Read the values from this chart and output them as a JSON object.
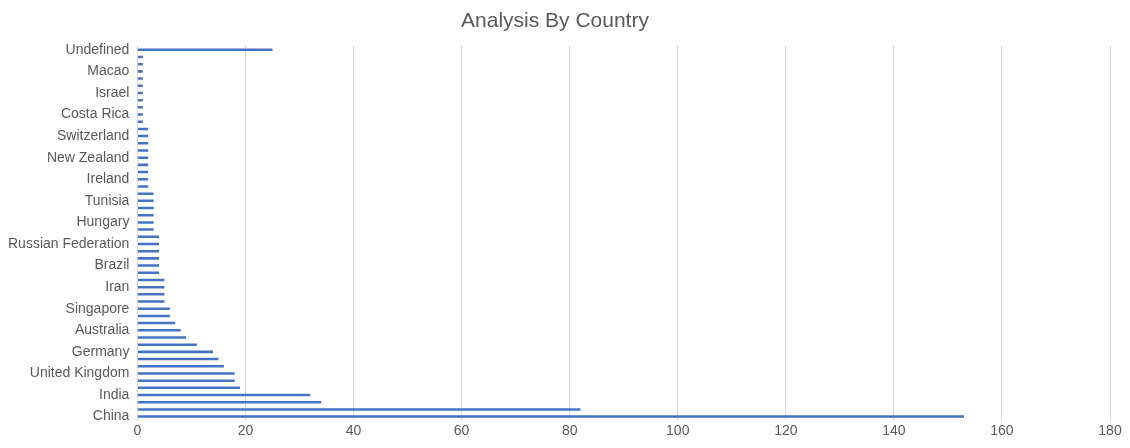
{
  "chart_data": {
    "type": "bar",
    "orientation": "horizontal",
    "title": "Analysis By Country",
    "categories": [
      "Undefined",
      null,
      null,
      "Macao",
      null,
      null,
      "Israel",
      null,
      null,
      "Costa Rica",
      null,
      null,
      "Switzerland",
      null,
      null,
      "New Zealand",
      null,
      null,
      "Ireland",
      null,
      null,
      "Tunisia",
      null,
      null,
      "Hungary",
      null,
      null,
      "Russian Federation",
      null,
      null,
      "Brazil",
      null,
      null,
      "Iran",
      null,
      null,
      "Singapore",
      null,
      null,
      "Australia",
      null,
      null,
      "Germany",
      null,
      null,
      "United Kingdom",
      null,
      null,
      "India",
      null,
      null,
      "China"
    ],
    "values": [
      25,
      1,
      1,
      1,
      1,
      1,
      1,
      1,
      1,
      1,
      1,
      2,
      2,
      2,
      2,
      2,
      2,
      2,
      2,
      2,
      3,
      3,
      3,
      3,
      3,
      3,
      4,
      4,
      4,
      4,
      4,
      4,
      5,
      5,
      5,
      5,
      6,
      6,
      7,
      8,
      9,
      11,
      14,
      15,
      16,
      18,
      18,
      19,
      32,
      34,
      82,
      153
    ],
    "color": "#4472c4",
    "xlim": [
      0,
      180
    ],
    "xticks": [
      0,
      20,
      40,
      60,
      80,
      100,
      120,
      140,
      160,
      180
    ],
    "grid": "x"
  }
}
